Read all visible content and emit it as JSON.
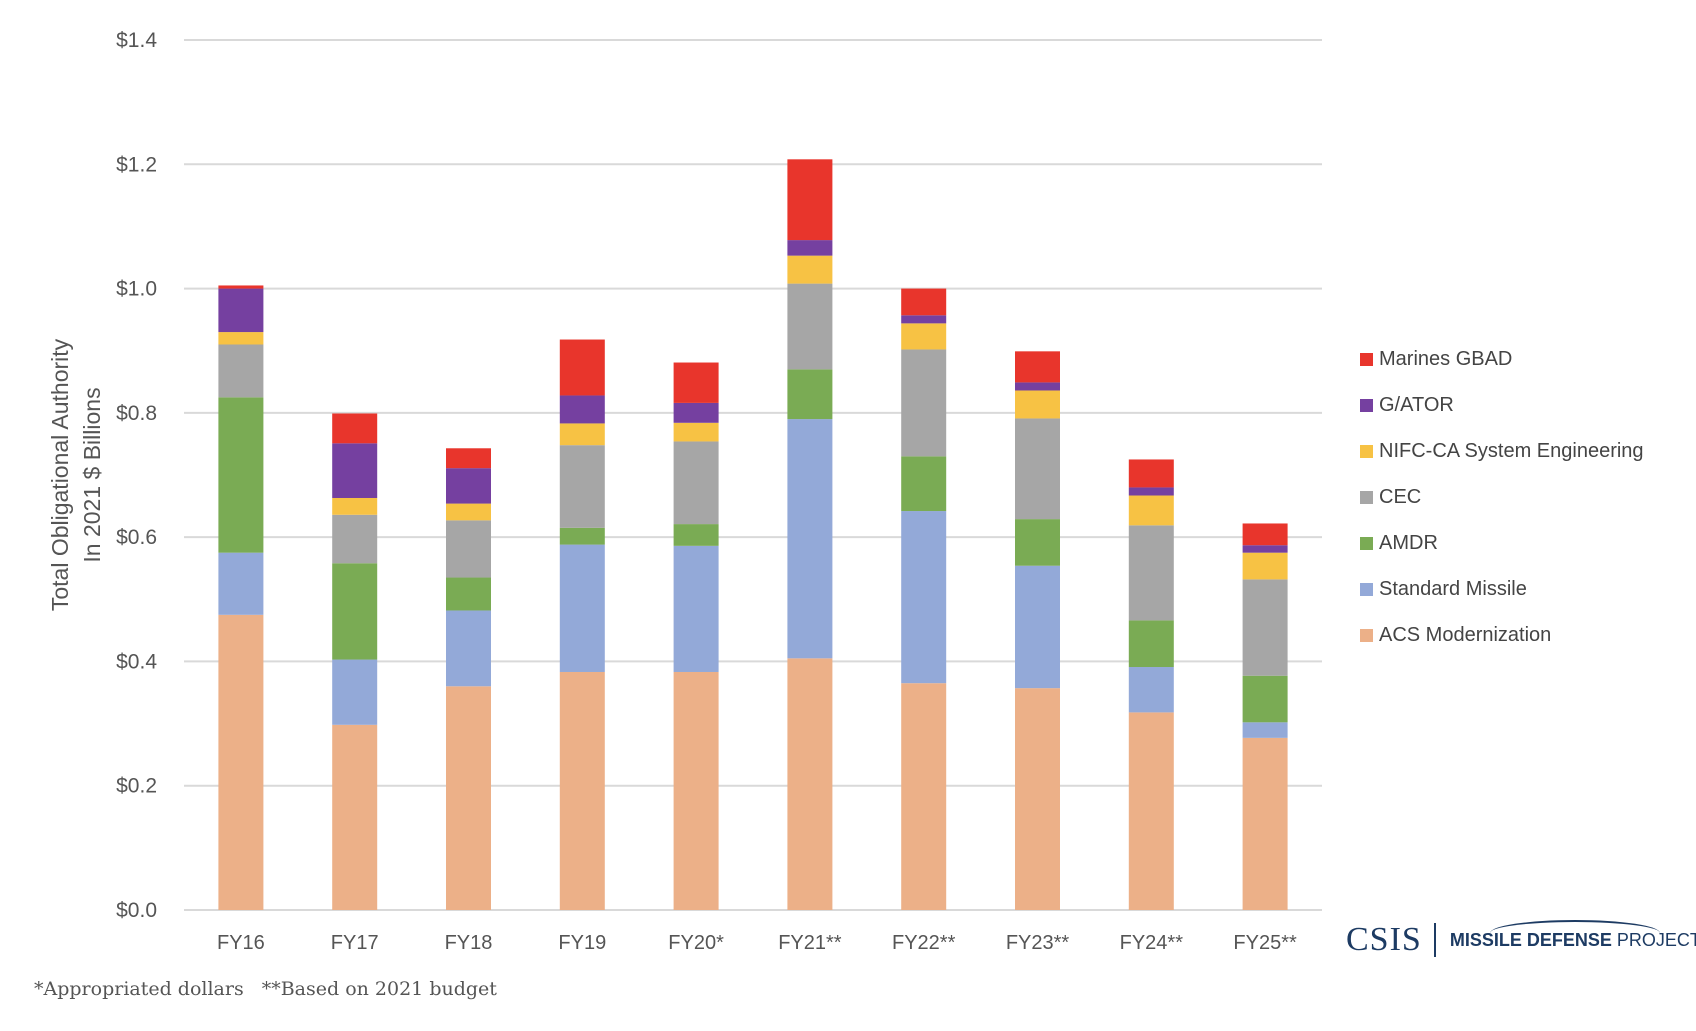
{
  "chart_data": {
    "type": "bar",
    "stacked": true,
    "title": "",
    "ylabel": "Total Obligational Authority In 2021 $ Billions",
    "ylabel_lines": [
      "Total Obligational Authority",
      "In 2021 $ Billions"
    ],
    "xlabel": "",
    "ylim": [
      0,
      1.4
    ],
    "y_ticks": [
      0.0,
      0.2,
      0.4,
      0.6,
      0.8,
      1.0,
      1.2,
      1.4
    ],
    "y_tick_labels": [
      "$0.0",
      "$0.2",
      "$0.4",
      "$0.6",
      "$0.8",
      "$1.0",
      "$1.2",
      "$1.4"
    ],
    "grid": true,
    "legend_position": "right",
    "categories": [
      "FY16",
      "FY17",
      "FY18",
      "FY19",
      "FY20*",
      "FY21**",
      "FY22**",
      "FY23**",
      "FY24**",
      "FY25**"
    ],
    "series": [
      {
        "name": "ACS Modernization",
        "color": "#ecb088",
        "values": [
          0.475,
          0.298,
          0.36,
          0.383,
          0.383,
          0.405,
          0.365,
          0.357,
          0.318,
          0.277
        ]
      },
      {
        "name": "Standard Missile",
        "color": "#93a9d8",
        "values": [
          0.1,
          0.105,
          0.122,
          0.205,
          0.203,
          0.385,
          0.277,
          0.197,
          0.073,
          0.025
        ]
      },
      {
        "name": "AMDR",
        "color": "#7aab54",
        "values": [
          0.25,
          0.155,
          0.053,
          0.027,
          0.035,
          0.08,
          0.088,
          0.075,
          0.075,
          0.075
        ]
      },
      {
        "name": "CEC",
        "color": "#a6a6a6",
        "values": [
          0.085,
          0.078,
          0.092,
          0.133,
          0.133,
          0.138,
          0.172,
          0.162,
          0.153,
          0.155
        ]
      },
      {
        "name": "NIFC-CA System Engineering",
        "color": "#f7c244",
        "values": [
          0.02,
          0.027,
          0.027,
          0.035,
          0.03,
          0.045,
          0.042,
          0.045,
          0.048,
          0.043
        ]
      },
      {
        "name": "G/ATOR",
        "color": "#7540a0",
        "values": [
          0.07,
          0.088,
          0.057,
          0.045,
          0.032,
          0.025,
          0.013,
          0.013,
          0.013,
          0.012
        ]
      },
      {
        "name": "Marines GBAD",
        "color": "#e8352c",
        "values": [
          0.005,
          0.048,
          0.032,
          0.09,
          0.065,
          0.13,
          0.043,
          0.05,
          0.045,
          0.035
        ]
      }
    ],
    "legend_order": [
      "Marines GBAD",
      "G/ATOR",
      "NIFC-CA System Engineering",
      "CEC",
      "AMDR",
      "Standard Missile",
      "ACS Modernization"
    ]
  },
  "logo": {
    "org": "CSIS",
    "project_bold": "MISSILE DEFENSE",
    "project_regular": " PROJECT"
  },
  "footnotes": {
    "appropriated": "*Appropriated dollars",
    "based_on": "**Based on 2021 budget"
  }
}
